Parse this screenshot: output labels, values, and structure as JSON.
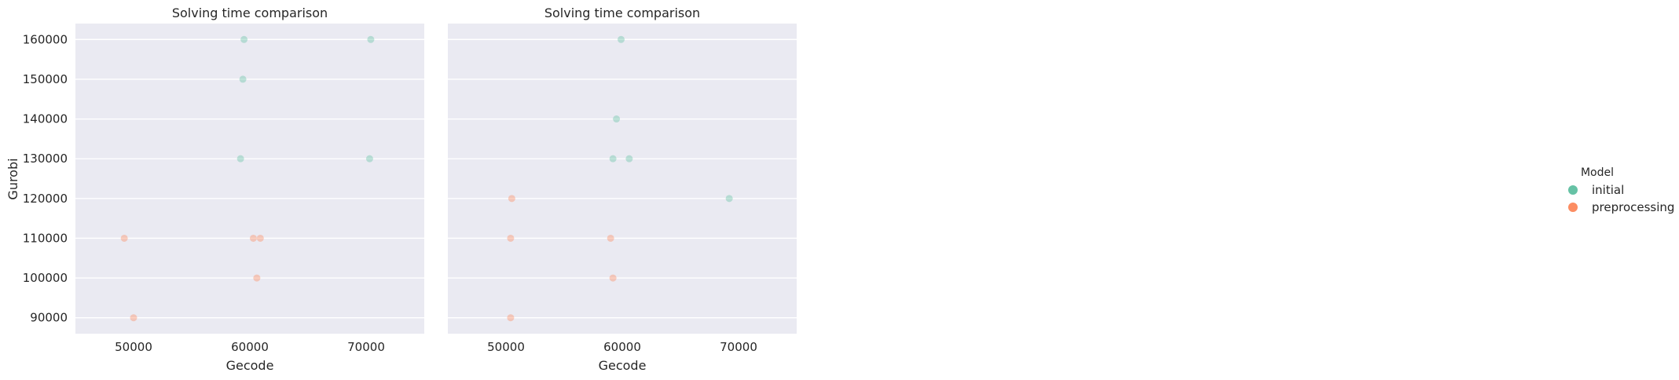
{
  "chart_data": [
    {
      "type": "scatter",
      "title": "Solving time comparison",
      "xlabel": "Gecode",
      "ylabel": "Gurobi",
      "xlim": [
        45000,
        75000
      ],
      "ylim": [
        86000,
        164000
      ],
      "xticks": [
        "50000",
        "60000",
        "70000"
      ],
      "yticks": [
        "90000",
        "100000",
        "110000",
        "120000",
        "130000",
        "140000",
        "150000",
        "160000"
      ],
      "grid": true,
      "series": [
        {
          "name": "initial",
          "color": "#66c2a5",
          "points": [
            [
              59500,
              160000
            ],
            [
              70400,
              160000
            ],
            [
              59400,
              150000
            ],
            [
              59200,
              130000
            ],
            [
              70300,
              130000
            ]
          ]
        },
        {
          "name": "preprocessing",
          "color": "#fc8d62",
          "points": [
            [
              49200,
              110000
            ],
            [
              60300,
              110000
            ],
            [
              60900,
              110000
            ],
            [
              60600,
              100000
            ],
            [
              50000,
              90000
            ]
          ]
        }
      ]
    },
    {
      "type": "scatter",
      "title": "Solving time comparison",
      "xlabel": "Gecode",
      "ylabel": "",
      "xlim": [
        45000,
        75000
      ],
      "ylim": [
        86000,
        164000
      ],
      "xticks": [
        "50000",
        "60000",
        "70000"
      ],
      "grid": true,
      "series": [
        {
          "name": "initial",
          "color": "#66c2a5",
          "points": [
            [
              59900,
              160000
            ],
            [
              59500,
              140000
            ],
            [
              59200,
              130000
            ],
            [
              60600,
              130000
            ],
            [
              69200,
              120000
            ]
          ]
        },
        {
          "name": "preprocessing",
          "color": "#fc8d62",
          "points": [
            [
              50500,
              120000
            ],
            [
              50400,
              110000
            ],
            [
              59000,
              110000
            ],
            [
              59200,
              100000
            ],
            [
              50400,
              90000
            ]
          ]
        }
      ]
    }
  ],
  "legend": {
    "title": "Model",
    "placement": "right",
    "items": [
      {
        "label": "initial",
        "color": "#66c2a5"
      },
      {
        "label": "preprocessing",
        "color": "#fc8d62"
      }
    ]
  }
}
